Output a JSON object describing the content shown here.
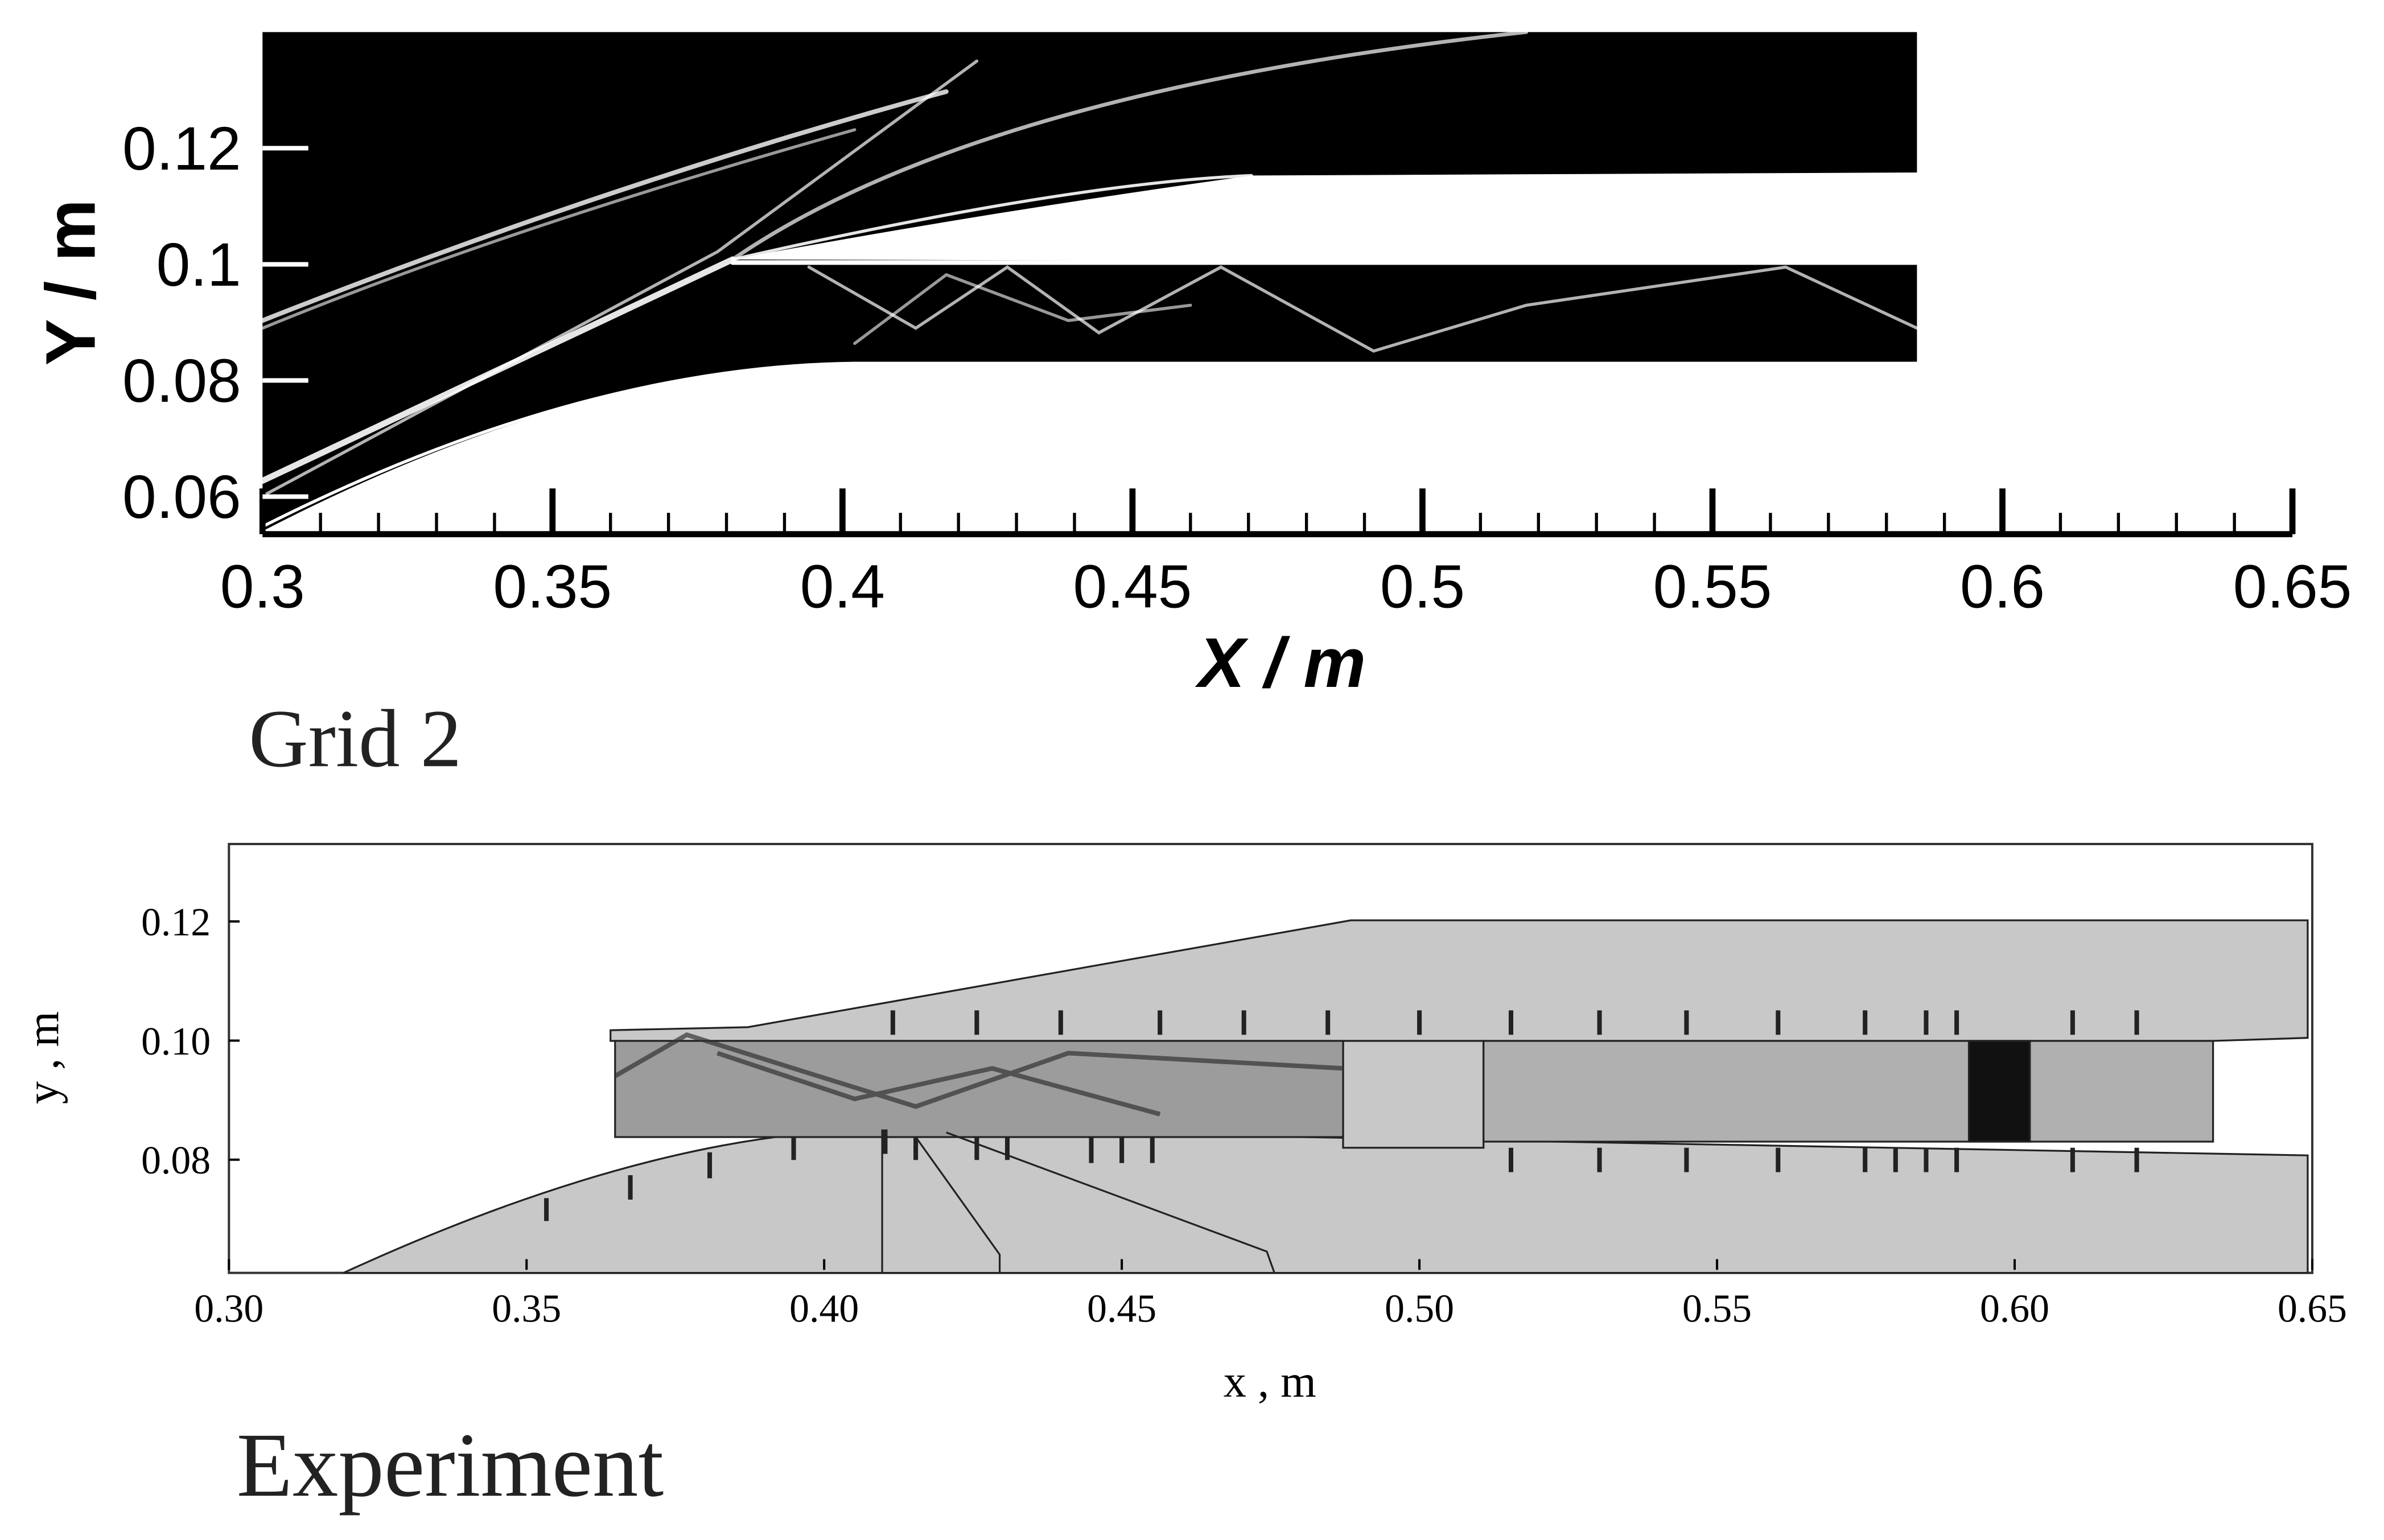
{
  "panels": [
    {
      "caption": "Grid 2",
      "xlabel": "X / m",
      "ylabel": "Y / m",
      "xlim": [
        0.3,
        0.65
      ],
      "xticks": [
        0.3,
        0.35,
        0.4,
        0.45,
        0.5,
        0.55,
        0.6,
        0.65
      ],
      "ylim": [
        0.053,
        0.14
      ],
      "yticks": [
        0.06,
        0.08,
        0.1,
        0.12
      ]
    },
    {
      "caption": "Experiment",
      "xlabel": "x , m",
      "ylabel": "y , m",
      "xlim": [
        0.3,
        0.65
      ],
      "xticks": [
        {
          "value": 0.3,
          "label": "0.30"
        },
        0.35,
        {
          "value": 0.4,
          "label": "0.40"
        },
        0.45,
        {
          "value": 0.5,
          "label": "0.50"
        },
        0.55,
        {
          "value": 0.6,
          "label": "0.60"
        },
        0.65
      ],
      "ylim": [
        0.061,
        0.133
      ],
      "yticks": [
        {
          "value": 0.08,
          "label": "0.08"
        },
        {
          "value": 0.1,
          "label": "0.10"
        },
        {
          "value": 0.12,
          "label": "0.12"
        }
      ]
    }
  ]
}
